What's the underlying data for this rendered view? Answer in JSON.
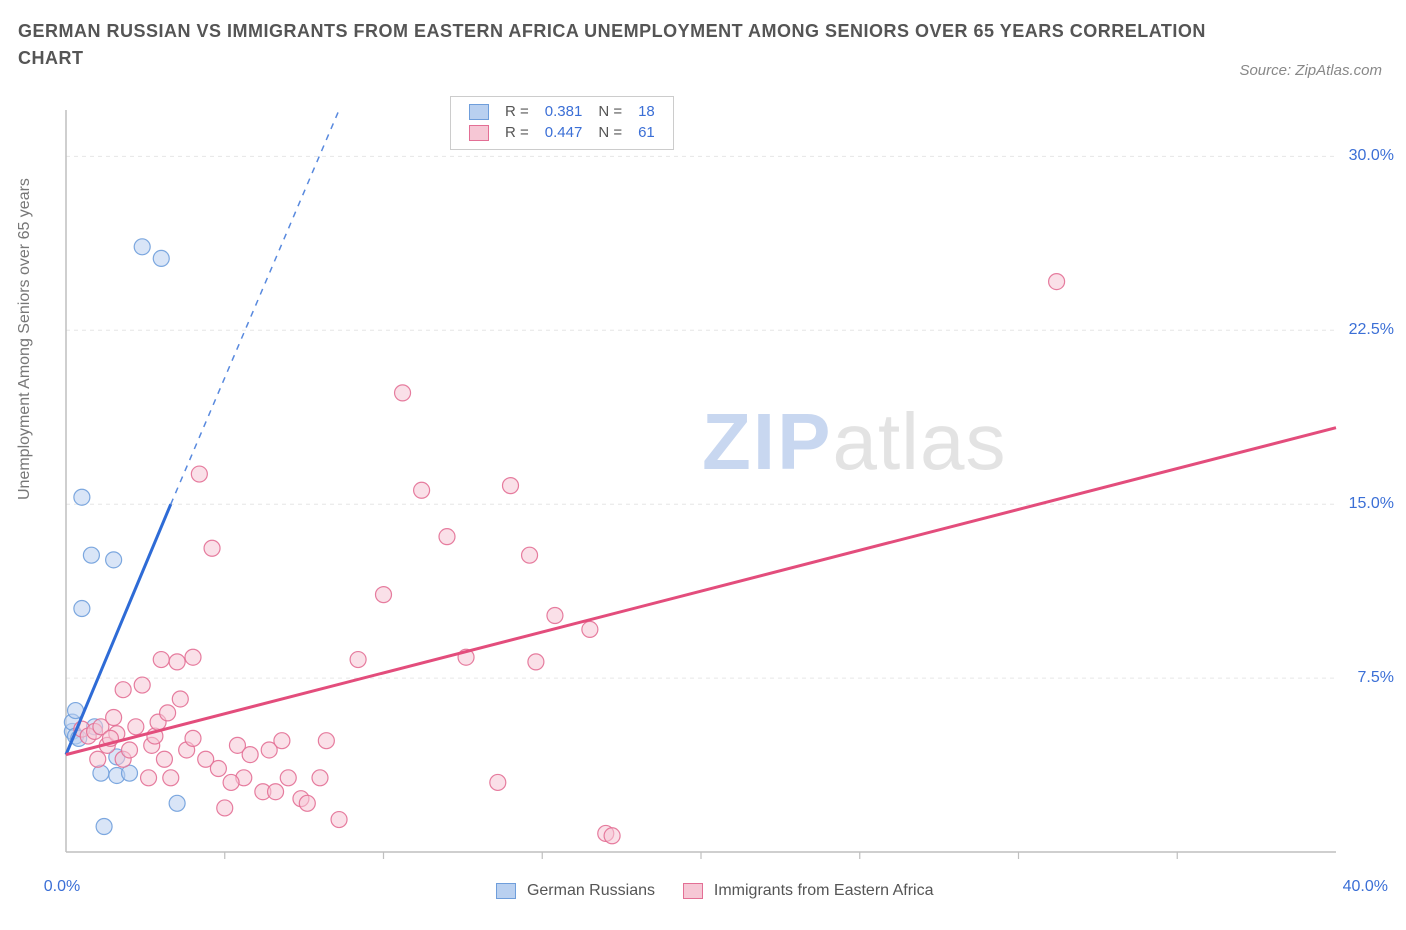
{
  "title": "GERMAN RUSSIAN VS IMMIGRANTS FROM EASTERN AFRICA UNEMPLOYMENT AMONG SENIORS OVER 65 YEARS CORRELATION CHART",
  "source": "Source: ZipAtlas.com",
  "ylabel": "Unemployment Among Seniors over 65 years",
  "watermark": {
    "zip": "ZIP",
    "atlas": "atlas"
  },
  "chart": {
    "type": "scatter",
    "background_color": "#ffffff",
    "grid_color": "#e6e6e6",
    "grid_dash": "4 4",
    "axis_color": "#bfbfbf",
    "tick_color": "#bfbfbf",
    "xlim": [
      0,
      40
    ],
    "ylim": [
      0,
      32
    ],
    "xticks_minor_step": 5,
    "yticks": [
      7.5,
      15.0,
      22.5,
      30.0
    ],
    "ytick_labels": [
      "7.5%",
      "15.0%",
      "22.5%",
      "30.0%"
    ],
    "xlabel_0": "0.0%",
    "xlabel_max": "40.0%",
    "legend_top": {
      "rows": [
        {
          "swatch_fill": "#b9d0f0",
          "swatch_stroke": "#6f9edb",
          "r_label": "R =",
          "r_val": "0.381",
          "n_label": "N =",
          "n_val": "18"
        },
        {
          "swatch_fill": "#f6c7d5",
          "swatch_stroke": "#e36f95",
          "r_label": "R =",
          "r_val": "0.447",
          "n_label": "N =",
          "n_val": "61"
        }
      ]
    },
    "legend_bottom": {
      "items": [
        {
          "swatch_fill": "#b9d0f0",
          "swatch_stroke": "#6f9edb",
          "label": "German Russians"
        },
        {
          "swatch_fill": "#f6c7d5",
          "swatch_stroke": "#e36f95",
          "label": "Immigrants from Eastern Africa"
        }
      ]
    },
    "marker_radius": 8,
    "marker_opacity": 0.55,
    "series": [
      {
        "name": "German Russians",
        "color_fill": "#b9d0f0",
        "color_stroke": "#6f9edb",
        "trend": {
          "color": "#2e6bd6",
          "width": 3,
          "x1": 0,
          "y1": 4.2,
          "x2": 3.3,
          "y2": 15.0,
          "dash_after_x": 3.3,
          "dash_to_x": 8.6,
          "dash_to_y": 32.0
        },
        "points": [
          [
            0.2,
            5.2
          ],
          [
            0.2,
            5.6
          ],
          [
            0.3,
            5.0
          ],
          [
            0.3,
            6.1
          ],
          [
            0.4,
            4.9
          ],
          [
            0.5,
            10.5
          ],
          [
            0.5,
            15.3
          ],
          [
            0.8,
            12.8
          ],
          [
            1.1,
            3.4
          ],
          [
            1.5,
            12.6
          ],
          [
            1.6,
            4.1
          ],
          [
            1.6,
            3.3
          ],
          [
            2.0,
            3.4
          ],
          [
            2.4,
            26.1
          ],
          [
            3.0,
            25.6
          ],
          [
            3.5,
            2.1
          ],
          [
            1.2,
            1.1
          ],
          [
            0.9,
            5.4
          ]
        ]
      },
      {
        "name": "Immigrants from Eastern Africa",
        "color_fill": "#f6c7d5",
        "color_stroke": "#e36f95",
        "trend": {
          "color": "#e34d7c",
          "width": 3,
          "x1": 0,
          "y1": 4.2,
          "x2": 40,
          "y2": 18.3
        },
        "points": [
          [
            0.5,
            5.3
          ],
          [
            0.7,
            5.0
          ],
          [
            0.9,
            5.2
          ],
          [
            1.1,
            5.4
          ],
          [
            1.3,
            4.6
          ],
          [
            1.5,
            5.8
          ],
          [
            1.6,
            5.1
          ],
          [
            1.8,
            4.0
          ],
          [
            1.8,
            7.0
          ],
          [
            2.0,
            4.4
          ],
          [
            2.2,
            5.4
          ],
          [
            2.4,
            7.2
          ],
          [
            2.6,
            3.2
          ],
          [
            2.7,
            4.6
          ],
          [
            2.8,
            5.0
          ],
          [
            3.0,
            8.3
          ],
          [
            3.1,
            4.0
          ],
          [
            3.3,
            3.2
          ],
          [
            3.5,
            8.2
          ],
          [
            3.6,
            6.6
          ],
          [
            3.8,
            4.4
          ],
          [
            4.0,
            8.4
          ],
          [
            4.2,
            16.3
          ],
          [
            4.4,
            4.0
          ],
          [
            4.6,
            13.1
          ],
          [
            4.8,
            3.6
          ],
          [
            5.0,
            1.9
          ],
          [
            5.4,
            4.6
          ],
          [
            5.6,
            3.2
          ],
          [
            5.8,
            4.2
          ],
          [
            6.2,
            2.6
          ],
          [
            6.4,
            4.4
          ],
          [
            6.6,
            2.6
          ],
          [
            6.8,
            4.8
          ],
          [
            7.0,
            3.2
          ],
          [
            7.4,
            2.3
          ],
          [
            7.6,
            2.1
          ],
          [
            8.0,
            3.2
          ],
          [
            8.2,
            4.8
          ],
          [
            8.6,
            1.4
          ],
          [
            9.2,
            8.3
          ],
          [
            10.0,
            11.1
          ],
          [
            10.6,
            19.8
          ],
          [
            11.2,
            15.6
          ],
          [
            12.0,
            13.6
          ],
          [
            12.6,
            8.4
          ],
          [
            13.6,
            3.0
          ],
          [
            14.0,
            15.8
          ],
          [
            14.6,
            12.8
          ],
          [
            14.8,
            8.2
          ],
          [
            15.4,
            10.2
          ],
          [
            16.5,
            9.6
          ],
          [
            17.0,
            0.8
          ],
          [
            17.2,
            0.7
          ],
          [
            31.2,
            24.6
          ],
          [
            2.9,
            5.6
          ],
          [
            3.2,
            6.0
          ],
          [
            1.0,
            4.0
          ],
          [
            1.4,
            4.9
          ],
          [
            4.0,
            4.9
          ],
          [
            5.2,
            3.0
          ]
        ]
      }
    ]
  }
}
